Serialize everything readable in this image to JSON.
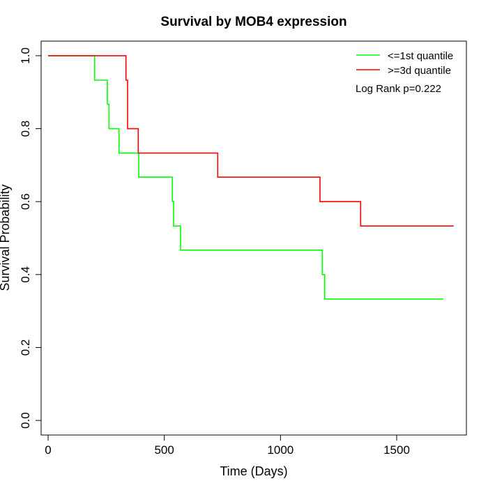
{
  "chart_data": {
    "type": "line",
    "title": "Survival by MOB4 expression",
    "xlabel": "Time (Days)",
    "ylabel": "Survival Probability",
    "xlim": [
      -30,
      1800
    ],
    "ylim": [
      -0.04,
      1.04
    ],
    "x_ticks": [
      0,
      500,
      1000,
      1500
    ],
    "x_tick_labels": [
      "0",
      "500",
      "1000",
      "1500"
    ],
    "y_ticks": [
      0.0,
      0.2,
      0.4,
      0.6,
      0.8,
      1.0
    ],
    "y_tick_labels": [
      "0.0",
      "0.2",
      "0.4",
      "0.6",
      "0.8",
      "1.0"
    ],
    "grid": false,
    "legend_position": "top-right",
    "annotation": "Log Rank p=0.222",
    "series": [
      {
        "name": "<=1st quantile",
        "color": "#00ff00",
        "step": true,
        "points": [
          [
            0,
            1.0
          ],
          [
            200,
            1.0
          ],
          [
            200,
            0.933
          ],
          [
            255,
            0.933
          ],
          [
            255,
            0.867
          ],
          [
            262,
            0.867
          ],
          [
            262,
            0.8
          ],
          [
            305,
            0.8
          ],
          [
            305,
            0.733
          ],
          [
            390,
            0.733
          ],
          [
            390,
            0.667
          ],
          [
            535,
            0.667
          ],
          [
            535,
            0.6
          ],
          [
            540,
            0.6
          ],
          [
            540,
            0.533
          ],
          [
            570,
            0.533
          ],
          [
            570,
            0.467
          ],
          [
            1180,
            0.467
          ],
          [
            1180,
            0.4
          ],
          [
            1190,
            0.4
          ],
          [
            1190,
            0.333
          ],
          [
            1700,
            0.333
          ]
        ]
      },
      {
        "name": ">=3d quantile",
        "color": "#ff0000",
        "step": true,
        "points": [
          [
            0,
            1.0
          ],
          [
            335,
            1.0
          ],
          [
            335,
            0.933
          ],
          [
            342,
            0.933
          ],
          [
            342,
            0.8
          ],
          [
            388,
            0.8
          ],
          [
            388,
            0.733
          ],
          [
            730,
            0.733
          ],
          [
            730,
            0.667
          ],
          [
            1170,
            0.667
          ],
          [
            1170,
            0.6
          ],
          [
            1345,
            0.6
          ],
          [
            1345,
            0.533
          ],
          [
            1745,
            0.533
          ]
        ]
      }
    ]
  }
}
